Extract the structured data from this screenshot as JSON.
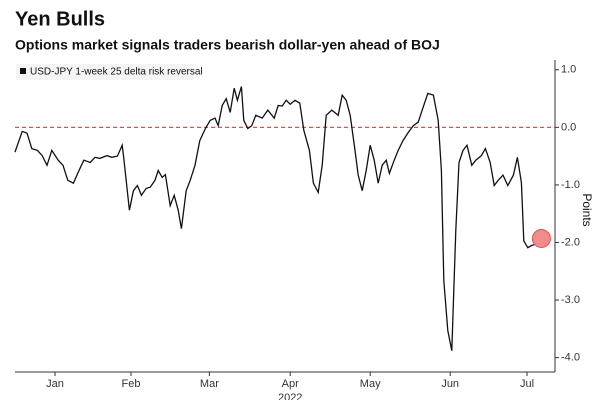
{
  "chart_data": {
    "type": "line",
    "title": "Yen Bulls",
    "subtitle": "Options market signals traders bearish dollar-yen ahead of BOJ",
    "y_label": "Points",
    "x_label": "2022",
    "xlim": [
      0,
      6.75
    ],
    "xticks": [
      {
        "value": 0.5,
        "label": "Jan"
      },
      {
        "value": 1.45,
        "label": "Feb"
      },
      {
        "value": 2.43,
        "label": "Mar"
      },
      {
        "value": 3.44,
        "label": "Apr"
      },
      {
        "value": 4.44,
        "label": "May"
      },
      {
        "value": 5.44,
        "label": "Jun"
      },
      {
        "value": 6.4,
        "label": "Jul"
      }
    ],
    "ylim": [
      -4.25,
      1.17
    ],
    "yticks": [
      {
        "value": 1,
        "label": "1.0"
      },
      {
        "value": 0,
        "label": "0.0"
      },
      {
        "value": -1,
        "label": "-1.0"
      },
      {
        "value": -2,
        "label": "-2.0"
      },
      {
        "value": -3,
        "label": "-3.0"
      },
      {
        "value": -4,
        "label": "-4.0"
      }
    ],
    "y_axis_side": "right",
    "reference_line": 0,
    "reference_color": "#d9534f",
    "highlight_last": true,
    "highlight_color": "#f28b8b",
    "series": [
      {
        "name": "USD-JPY 1-week 25 delta risk reversal",
        "color": "#111111",
        "x": [
          0.0,
          0.09,
          0.15,
          0.21,
          0.28,
          0.34,
          0.4,
          0.46,
          0.54,
          0.6,
          0.66,
          0.73,
          0.79,
          0.86,
          0.94,
          1.0,
          1.06,
          1.15,
          1.21,
          1.28,
          1.34,
          1.36,
          1.43,
          1.48,
          1.53,
          1.58,
          1.64,
          1.69,
          1.75,
          1.79,
          1.84,
          1.88,
          1.94,
          1.99,
          2.04,
          2.08,
          2.14,
          2.19,
          2.25,
          2.31,
          2.38,
          2.44,
          2.5,
          2.54,
          2.59,
          2.64,
          2.69,
          2.74,
          2.78,
          2.83,
          2.86,
          2.91,
          2.96,
          3.01,
          3.09,
          3.16,
          3.24,
          3.29,
          3.34,
          3.39,
          3.44,
          3.5,
          3.56,
          3.61,
          3.68,
          3.73,
          3.79,
          3.84,
          3.89,
          3.96,
          4.04,
          4.09,
          4.14,
          4.19,
          4.25,
          4.29,
          4.34,
          4.39,
          4.44,
          4.49,
          4.54,
          4.59,
          4.64,
          4.68,
          4.74,
          4.79,
          4.85,
          4.91,
          4.98,
          5.04,
          5.09,
          5.16,
          5.23,
          5.29,
          5.33,
          5.36,
          5.41,
          5.46,
          5.51,
          5.55,
          5.6,
          5.65,
          5.71,
          5.76,
          5.83,
          5.88,
          5.94,
          5.99,
          6.04,
          6.1,
          6.16,
          6.23,
          6.28,
          6.33,
          6.36,
          6.41,
          6.46,
          6.51,
          6.58
        ],
        "values": [
          -0.43,
          -0.07,
          -0.1,
          -0.37,
          -0.4,
          -0.49,
          -0.66,
          -0.4,
          -0.57,
          -0.66,
          -0.92,
          -0.97,
          -0.78,
          -0.57,
          -0.61,
          -0.52,
          -0.54,
          -0.49,
          -0.52,
          -0.5,
          -0.31,
          -0.54,
          -1.44,
          -1.1,
          -1.01,
          -1.18,
          -1.06,
          -1.04,
          -0.92,
          -0.75,
          -0.87,
          -0.82,
          -1.36,
          -1.18,
          -1.44,
          -1.76,
          -1.1,
          -0.92,
          -0.66,
          -0.23,
          -0.02,
          0.12,
          0.16,
          0.03,
          0.38,
          0.5,
          0.26,
          0.68,
          0.47,
          0.71,
          0.12,
          -0.02,
          0.03,
          0.21,
          0.16,
          0.3,
          0.16,
          0.38,
          0.37,
          0.47,
          0.4,
          0.47,
          0.42,
          -0.05,
          -0.4,
          -0.97,
          -1.13,
          -0.66,
          0.21,
          0.3,
          0.21,
          0.56,
          0.47,
          0.21,
          -0.4,
          -0.83,
          -1.1,
          -0.75,
          -0.31,
          -0.57,
          -0.97,
          -0.66,
          -0.57,
          -0.8,
          -0.57,
          -0.4,
          -0.23,
          -0.1,
          0.03,
          0.09,
          0.3,
          0.59,
          0.56,
          0.12,
          -0.75,
          -2.66,
          -3.53,
          -3.88,
          -1.79,
          -0.61,
          -0.4,
          -0.31,
          -0.66,
          -0.57,
          -0.49,
          -0.37,
          -0.61,
          -1.01,
          -0.92,
          -0.83,
          -1.01,
          -0.83,
          -0.52,
          -0.96,
          -1.97,
          -2.09,
          -2.05,
          -2.03,
          -1.93
        ]
      }
    ]
  }
}
